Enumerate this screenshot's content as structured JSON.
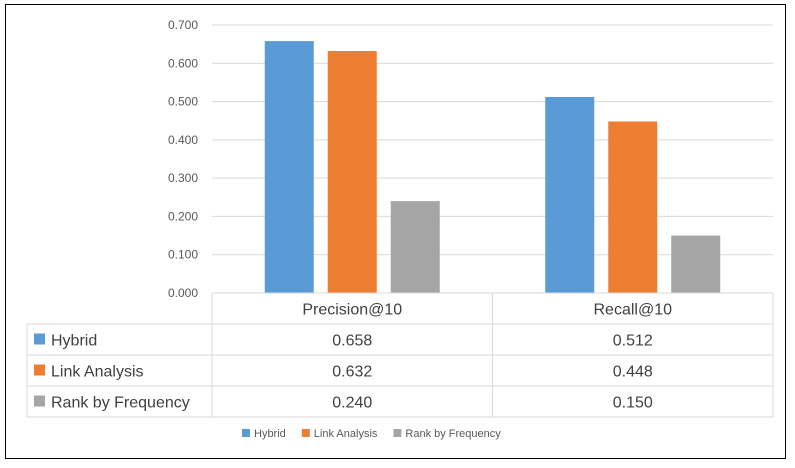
{
  "chart_data": {
    "type": "bar",
    "categories": [
      "Precision@10",
      "Recall@10"
    ],
    "series": [
      {
        "name": "Hybrid",
        "color": "#5B9BD5",
        "values": [
          0.658,
          0.512
        ]
      },
      {
        "name": "Link Analysis",
        "color": "#ED7D31",
        "values": [
          0.632,
          0.448
        ]
      },
      {
        "name": "Rank by Frequency",
        "color": "#A5A5A5",
        "values": [
          0.24,
          0.15
        ]
      }
    ],
    "ylim": [
      0,
      0.7
    ],
    "yticks": [
      "0.000",
      "0.100",
      "0.200",
      "0.300",
      "0.400",
      "0.500",
      "0.600",
      "0.700"
    ],
    "table_values": [
      [
        "0.658",
        "0.512"
      ],
      [
        "0.632",
        "0.448"
      ],
      [
        "0.240",
        "0.150"
      ]
    ],
    "legend": [
      "Hybrid",
      "Link Analysis",
      "Rank by Frequency"
    ],
    "grid": true,
    "legend_position": "bottom",
    "title": "",
    "xlabel": "",
    "ylabel": ""
  }
}
